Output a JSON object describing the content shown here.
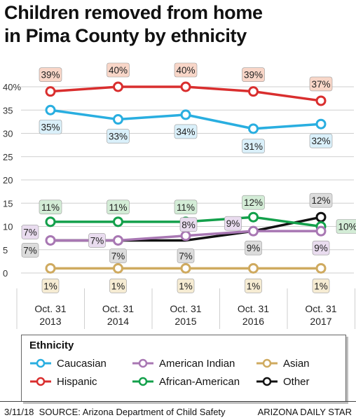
{
  "header": {
    "title_line1": "Children removed from home",
    "title_line2": "in Pima County by ethnicity"
  },
  "footer": {
    "date": "3/11/18",
    "source": "SOURCE: Arizona Department of Child Safety",
    "publisher": "ARIZONA DAILY STAR"
  },
  "chart_data": {
    "type": "line",
    "title": "Children removed from home in Pima County by ethnicity",
    "x": [
      "Oct. 31 2013",
      "Oct. 31 2014",
      "Oct. 31 2015",
      "Oct. 31 2016",
      "Oct. 31 2017"
    ],
    "x_tick_lines": [
      [
        "Oct. 31",
        "2013"
      ],
      [
        "Oct. 31",
        "2014"
      ],
      [
        "Oct. 31",
        "2015"
      ],
      [
        "Oct. 31",
        "2016"
      ],
      [
        "Oct. 31",
        "2017"
      ]
    ],
    "ylim": [
      0,
      40
    ],
    "yticks": [
      0,
      5,
      10,
      15,
      20,
      25,
      30,
      35,
      40
    ],
    "ytick_labels": [
      "0",
      "5",
      "10",
      "15",
      "20",
      "25",
      "30",
      "35",
      "40%"
    ],
    "grid": true,
    "legend_title": "Ethnicity",
    "legend_position": "bottom",
    "series": [
      {
        "name": "Caucasian",
        "color": "#29aee0",
        "label_bg": "#daf0fa",
        "values": [
          35,
          33,
          34,
          31,
          32
        ],
        "labels": [
          "35%",
          "33%",
          "34%",
          "31%",
          "32%"
        ],
        "marker": "circle"
      },
      {
        "name": "Hispanic",
        "color": "#d92e2e",
        "label_bg": "#f8d6c8",
        "values": [
          39,
          40,
          40,
          39,
          37
        ],
        "labels": [
          "39%",
          "40%",
          "40%",
          "39%",
          "37%"
        ],
        "marker": "circle"
      },
      {
        "name": "American Indian",
        "color": "#a877b3",
        "label_bg": "#e9dcef",
        "values": [
          7,
          7,
          8,
          9,
          9
        ],
        "labels": [
          "7%",
          "7%",
          "8%",
          "9%",
          "9%"
        ],
        "marker": "circle"
      },
      {
        "name": "African-American",
        "color": "#13a04b",
        "label_bg": "#d3ecd6",
        "values": [
          11,
          11,
          11,
          12,
          10
        ],
        "labels": [
          "11%",
          "11%",
          "11%",
          "12%",
          "10%"
        ],
        "marker": "circle"
      },
      {
        "name": "Asian",
        "color": "#cfaa5f",
        "label_bg": "#f6ecd3",
        "values": [
          1,
          1,
          1,
          1,
          1
        ],
        "labels": [
          "1%",
          "1%",
          "1%",
          "1%",
          "1%"
        ],
        "marker": "circle"
      },
      {
        "name": "Other",
        "color": "#111111",
        "label_bg": "#dcdcdc",
        "values": [
          7,
          7,
          7,
          9,
          12
        ],
        "labels": [
          "7%",
          "7%",
          "7%",
          "9%",
          "12%"
        ],
        "marker": "circle_last_only"
      }
    ]
  }
}
